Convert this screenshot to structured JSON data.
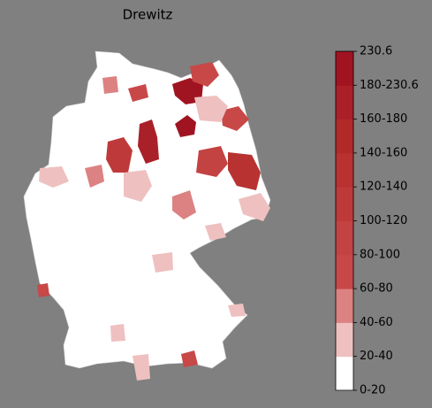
{
  "title": "Drewitz",
  "legend": {
    "labels": [
      "0-20",
      "20-40",
      "40-60",
      "60-80",
      "80-100",
      "100-120",
      "120-140",
      "140-160",
      "160-180",
      "180-230.6",
      "230.6"
    ],
    "colors": [
      "#ffffff",
      "#efc0c0",
      "#dc8282",
      "#c84848",
      "#c34242",
      "#be3a3a",
      "#b83232",
      "#b12a2a",
      "#aa2028",
      "#a01422"
    ]
  }
}
